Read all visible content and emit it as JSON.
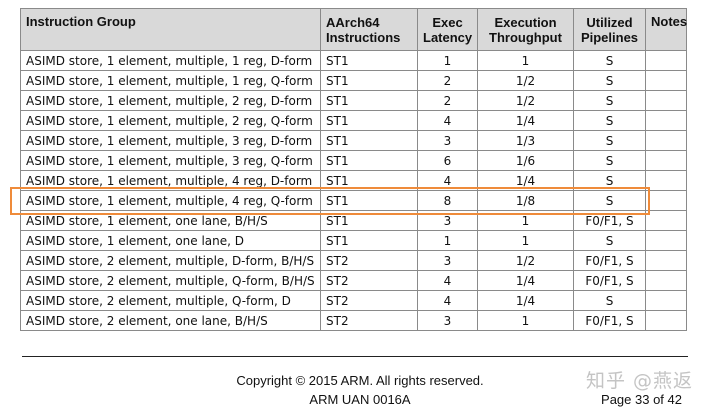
{
  "table": {
    "headers": [
      "Instruction Group",
      "AArch64 Instructions",
      "Exec Latency",
      "Execution Throughput",
      "Utilized Pipelines",
      "Notes"
    ],
    "rows": [
      [
        "ASIMD store, 1 element, multiple, 1 reg, D-form",
        "ST1",
        "1",
        "1",
        "S",
        ""
      ],
      [
        "ASIMD store, 1 element, multiple, 1 reg, Q-form",
        "ST1",
        "2",
        "1/2",
        "S",
        ""
      ],
      [
        "ASIMD store, 1 element, multiple, 2 reg, D-form",
        "ST1",
        "2",
        "1/2",
        "S",
        ""
      ],
      [
        "ASIMD store, 1 element, multiple, 2 reg, Q-form",
        "ST1",
        "4",
        "1/4",
        "S",
        ""
      ],
      [
        "ASIMD store, 1 element, multiple, 3 reg, D-form",
        "ST1",
        "3",
        "1/3",
        "S",
        ""
      ],
      [
        "ASIMD store, 1 element, multiple, 3 reg, Q-form",
        "ST1",
        "6",
        "1/6",
        "S",
        ""
      ],
      [
        "ASIMD store, 1 element, multiple, 4 reg, D-form",
        "ST1",
        "4",
        "1/4",
        "S",
        ""
      ],
      [
        "ASIMD store, 1 element, multiple, 4 reg, Q-form",
        "ST1",
        "8",
        "1/8",
        "S",
        ""
      ],
      [
        "ASIMD store, 1 element, one lane, B/H/S",
        "ST1",
        "3",
        "1",
        "F0/F1, S",
        ""
      ],
      [
        "ASIMD store, 1 element, one lane, D",
        "ST1",
        "1",
        "1",
        "S",
        ""
      ],
      [
        "ASIMD store, 2 element, multiple, D-form, B/H/S",
        "ST2",
        "3",
        "1/2",
        "F0/F1, S",
        ""
      ],
      [
        "ASIMD store, 2 element, multiple, Q-form, B/H/S",
        "ST2",
        "4",
        "1/4",
        "F0/F1, S",
        ""
      ],
      [
        "ASIMD store, 2 element, multiple, Q-form, D",
        "ST2",
        "4",
        "1/4",
        "S",
        ""
      ],
      [
        "ASIMD store, 2 element, one lane, B/H/S",
        "ST2",
        "3",
        "1",
        "F0/F1, S",
        ""
      ]
    ],
    "highlighted_row": 7,
    "header_bg": "#d9d9d9",
    "highlight_color": "#ef8b3a"
  },
  "footer": {
    "copyright": "Copyright © 2015 ARM. All rights reserved.",
    "doc_id": "ARM UAN 0016A",
    "page": "Page 33 of 42"
  },
  "watermark": "知乎 @燕返"
}
